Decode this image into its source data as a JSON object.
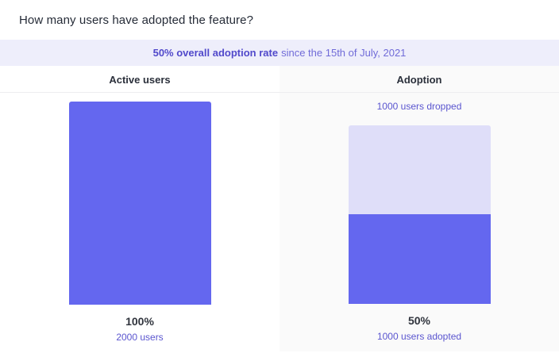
{
  "title": "How many users have adopted the feature?",
  "banner": {
    "highlight": "50% overall adoption rate",
    "rest": "since the 15th of July, 2021"
  },
  "columns": [
    {
      "header": "Active users",
      "percent": "100%",
      "sublabel": "2000 users"
    },
    {
      "header": "Adoption",
      "top_label": "1000 users dropped",
      "percent": "50%",
      "sublabel": "1000 users adopted"
    }
  ],
  "colors": {
    "bar_primary": "#6467ef",
    "bar_dropped_light": "#dfdef9",
    "banner_bg": "#eeeefb",
    "accent_text": "#5a55cf",
    "banner_bold_text": "#5149cb",
    "right_panel_bg": "#fafafa"
  },
  "chart_data": {
    "type": "bar",
    "title": "How many users have adopted the feature?",
    "subtitle": "50% overall adoption rate since the 15th of July, 2021",
    "categories": [
      "Active users",
      "Adoption"
    ],
    "series": [
      {
        "name": "adopted",
        "values": [
          2000,
          1000
        ]
      },
      {
        "name": "dropped",
        "values": [
          0,
          1000
        ]
      }
    ],
    "value_labels": [
      "100%",
      "50%"
    ],
    "bar_annotations": [
      "2000 users",
      "1000 users adopted"
    ],
    "dropped_annotation": "1000 users dropped",
    "overall_adoption_rate_percent": 50,
    "since_date": "15th of July, 2021",
    "ylim": [
      0,
      2000
    ],
    "grid": false,
    "legend_position": "none"
  }
}
